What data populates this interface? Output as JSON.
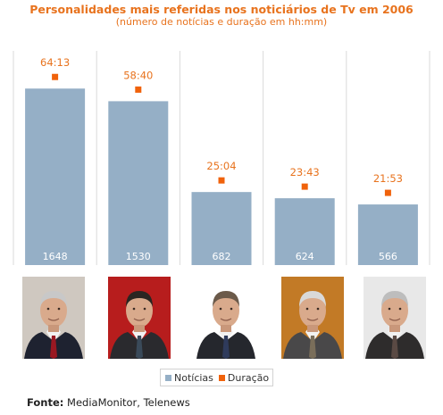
{
  "chart_data": {
    "type": "bar",
    "title": "Personalidades mais referidas nos noticiários de Tv em 2006",
    "subtitle": "(número de notícias e duração em hh:mm)",
    "categories": [
      "",
      "",
      "",
      "",
      ""
    ],
    "series": [
      {
        "name": "Notícias",
        "type": "bar",
        "values": [
          1648,
          1530,
          682,
          624,
          566
        ]
      },
      {
        "name": "Duração",
        "type": "scatter",
        "values": [
          "64:13",
          "58:40",
          "25:04",
          "23:43",
          "21:53"
        ]
      }
    ],
    "ylim": [
      0,
      2000
    ],
    "grid": false,
    "legend": "bottom",
    "colors": {
      "bar": "#95afc6",
      "marker": "#f0620b",
      "title": "#e8731e",
      "divider": "#dadada"
    }
  },
  "source": {
    "label": "Fonte:",
    "text": "MediaMonitor, Telenews"
  },
  "portraits": [
    {
      "name": "portrait-1-icon",
      "background": "#cfc8c0",
      "suit": "#1e2230",
      "tie": "#9a1822",
      "hair": "#c8c8c8"
    },
    {
      "name": "portrait-2-icon",
      "background": "#b71d1d",
      "suit": "#2a2a2e",
      "tie": "#3a4a5a",
      "hair": "#2a2622"
    },
    {
      "name": "portrait-3-icon",
      "background": "#ffffff",
      "suit": "#25272d",
      "tie": "#2f3b5c",
      "hair": "#6b5a4a"
    },
    {
      "name": "portrait-4-icon",
      "background": "#c27a26",
      "suit": "#494849",
      "tie": "#7a6e5a",
      "hair": "#d9d9d9"
    },
    {
      "name": "portrait-5-icon",
      "background": "#e8e8e8",
      "suit": "#2e2c2c",
      "tie": "#5a4a44",
      "hair": "#bdbdbd"
    }
  ]
}
